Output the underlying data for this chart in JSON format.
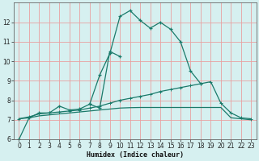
{
  "xlabel": "Humidex (Indice chaleur)",
  "bg_color": "#d6f0f0",
  "grid_color": "#e8a0a0",
  "line_color": "#1a7a6a",
  "xlim": [
    -0.5,
    23.5
  ],
  "ylim": [
    6,
    13
  ],
  "xticks": [
    0,
    1,
    2,
    3,
    4,
    5,
    6,
    7,
    8,
    9,
    10,
    11,
    12,
    13,
    14,
    15,
    16,
    17,
    18,
    19,
    20,
    21,
    22,
    23
  ],
  "yticks": [
    6,
    7,
    8,
    9,
    10,
    11,
    12
  ],
  "line1_y": [
    6.0,
    7.1,
    7.35,
    7.35,
    7.7,
    7.5,
    7.55,
    7.8,
    9.3,
    10.4,
    12.3,
    12.6,
    12.1,
    11.7,
    12.0,
    11.65,
    11.0,
    9.5,
    8.85,
    null,
    null,
    null,
    null,
    null
  ],
  "line2_y": [
    null,
    null,
    null,
    null,
    null,
    null,
    null,
    7.8,
    7.6,
    10.5,
    10.25,
    null,
    null,
    null,
    null,
    null,
    null,
    null,
    null,
    null,
    null,
    null,
    null,
    null
  ],
  "line3_y": [
    7.05,
    7.15,
    7.3,
    7.35,
    7.4,
    7.45,
    7.5,
    7.6,
    7.7,
    7.85,
    8.0,
    8.1,
    8.2,
    8.3,
    8.45,
    8.55,
    8.65,
    8.75,
    8.85,
    8.95,
    7.85,
    7.35,
    7.1,
    7.05
  ],
  "line4_y": [
    7.05,
    7.1,
    7.2,
    7.25,
    7.3,
    7.35,
    7.4,
    7.45,
    7.5,
    7.55,
    7.6,
    7.62,
    7.63,
    7.63,
    7.63,
    7.63,
    7.63,
    7.63,
    7.63,
    7.63,
    7.63,
    7.1,
    7.05,
    7.0
  ]
}
